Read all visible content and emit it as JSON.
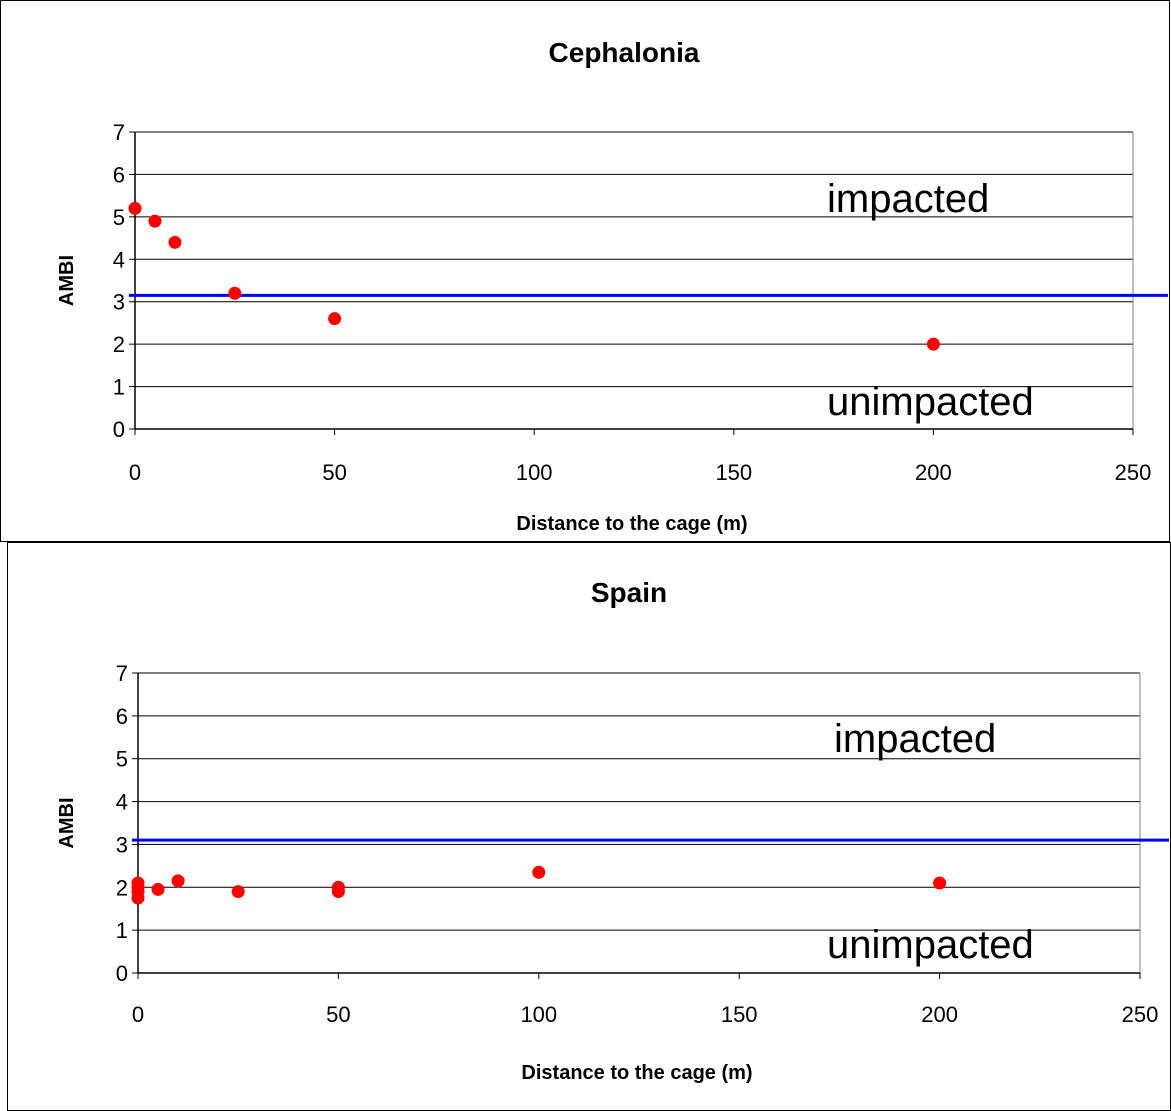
{
  "chart_data": [
    {
      "type": "scatter",
      "title": "Cephalonia",
      "xlabel": "Distance to the cage (m)",
      "ylabel": "AMBI",
      "xlim": [
        0,
        250
      ],
      "ylim": [
        0,
        7
      ],
      "xticks": [
        0,
        50,
        100,
        150,
        200,
        250
      ],
      "yticks": [
        0,
        1,
        2,
        3,
        4,
        5,
        6,
        7
      ],
      "grid": "horizontal",
      "legend": "none",
      "marker_color": "#ff0000",
      "threshold": {
        "y": 3.15,
        "color": "#0000ff"
      },
      "annotations": [
        "impacted",
        "unimpacted"
      ],
      "points": [
        {
          "x": 0,
          "y": 5.2
        },
        {
          "x": 5,
          "y": 4.9
        },
        {
          "x": 10,
          "y": 4.4
        },
        {
          "x": 25,
          "y": 3.2
        },
        {
          "x": 50,
          "y": 2.6
        },
        {
          "x": 200,
          "y": 2.0
        }
      ]
    },
    {
      "type": "scatter",
      "title": "Spain",
      "xlabel": "Distance to the cage (m)",
      "ylabel": "AMBI",
      "xlim": [
        0,
        250
      ],
      "ylim": [
        0,
        7
      ],
      "xticks": [
        0,
        50,
        100,
        150,
        200,
        250
      ],
      "yticks": [
        0,
        1,
        2,
        3,
        4,
        5,
        6,
        7
      ],
      "grid": "horizontal",
      "legend": "none",
      "marker_color": "#ff0000",
      "threshold": {
        "y": 3.1,
        "color": "#0000ff"
      },
      "annotations": [
        "impacted",
        "unimpacted"
      ],
      "points": [
        {
          "x": 0,
          "y": 2.1
        },
        {
          "x": 0,
          "y": 2.0
        },
        {
          "x": 0,
          "y": 1.9
        },
        {
          "x": 0,
          "y": 1.75
        },
        {
          "x": 5,
          "y": 1.95
        },
        {
          "x": 10,
          "y": 2.15
        },
        {
          "x": 25,
          "y": 1.9
        },
        {
          "x": 50,
          "y": 2.0
        },
        {
          "x": 50,
          "y": 1.9
        },
        {
          "x": 100,
          "y": 2.35
        },
        {
          "x": 200,
          "y": 2.1
        }
      ]
    }
  ]
}
